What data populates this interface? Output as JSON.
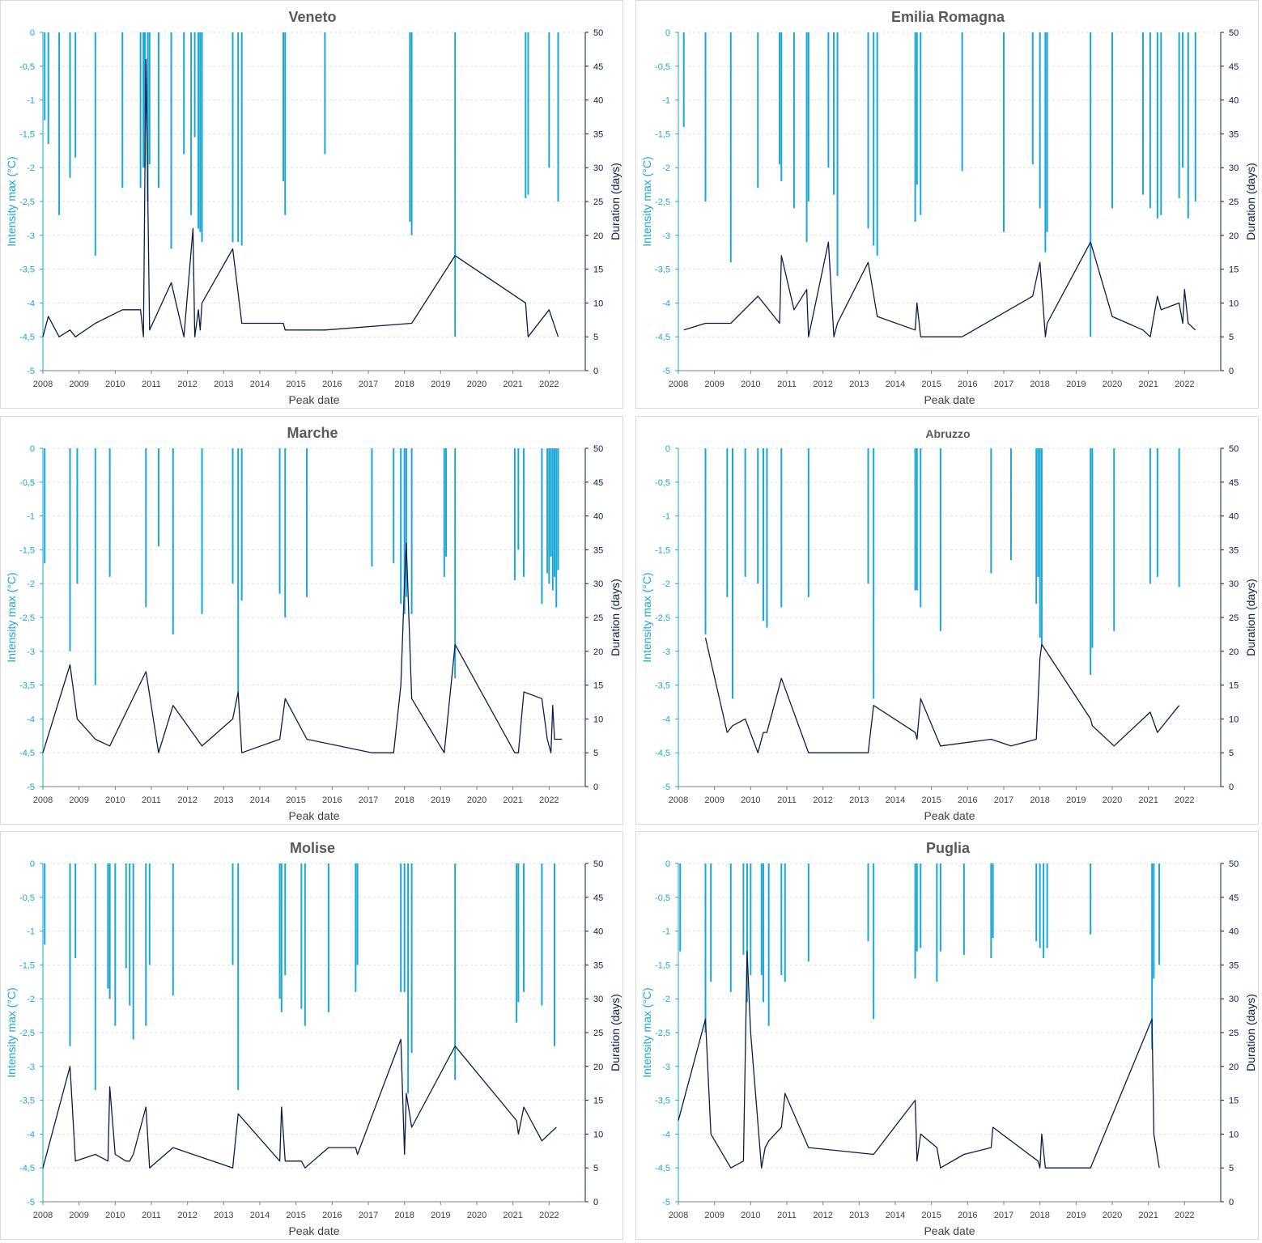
{
  "colors": {
    "intensity": "#1aa7d6",
    "duration": "#0b1d45",
    "text": "#404040",
    "grid": "#d9d9d9"
  },
  "shared": {
    "x_ticks": [
      "2008",
      "2009",
      "2010",
      "2011",
      "2012",
      "2013",
      "2014",
      "2015",
      "2016",
      "2017",
      "2018",
      "2019",
      "2020",
      "2021",
      "2022"
    ],
    "y_left_ticks": [
      "0",
      "-0,5",
      "-1",
      "-1,5",
      "-2",
      "-2,5",
      "-3",
      "-3,5",
      "-4",
      "-4,5",
      "-5"
    ],
    "y_right_ticks": [
      "50",
      "45",
      "40",
      "35",
      "30",
      "25",
      "20",
      "15",
      "10",
      "5",
      "0"
    ]
  },
  "chart_data": [
    {
      "type": "bar+line",
      "title": "Veneto",
      "xlabel": "Peak date",
      "ylabel_left": "Intensity max (°C)",
      "ylabel_right": "Duration (days)",
      "xlim": [
        2008,
        2023
      ],
      "ylim_left": [
        -5,
        0
      ],
      "ylim_right": [
        0,
        50
      ],
      "grid": true,
      "series": [
        {
          "name": "Intensity max",
          "kind": "bar",
          "axis": "left",
          "x": [
            2008.05,
            2008.15,
            2008.45,
            2008.75,
            2008.9,
            2009.45,
            2010.2,
            2010.7,
            2010.78,
            2010.82,
            2010.9,
            2010.95,
            2011.2,
            2011.55,
            2011.9,
            2012.1,
            2012.2,
            2012.3,
            2012.35,
            2012.4,
            2013.25,
            2013.4,
            2013.5,
            2014.65,
            2014.7,
            2015.8,
            2018.15,
            2018.2,
            2019.4,
            2021.35,
            2021.42,
            2022.0,
            2022.25
          ],
          "y": [
            -1.3,
            -1.65,
            -2.7,
            -2.15,
            -1.85,
            -3.3,
            -2.3,
            -2.3,
            -2.0,
            -2.0,
            -2.5,
            -1.95,
            -2.3,
            -3.2,
            -1.8,
            -2.7,
            -1.55,
            -2.9,
            -2.95,
            -3.1,
            -3.1,
            -3.1,
            -3.15,
            -2.2,
            -2.7,
            -1.8,
            -2.8,
            -3.0,
            -4.5,
            -2.45,
            -2.4,
            -2.0,
            -2.5
          ]
        },
        {
          "name": "Duration",
          "kind": "line",
          "axis": "right",
          "x": [
            2008.0,
            2008.15,
            2008.45,
            2008.75,
            2008.9,
            2009.45,
            2010.2,
            2010.7,
            2010.78,
            2010.85,
            2010.95,
            2011.55,
            2011.9,
            2012.15,
            2012.2,
            2012.3,
            2012.35,
            2012.4,
            2013.25,
            2013.5,
            2014.65,
            2014.7,
            2015.8,
            2018.2,
            2019.4,
            2021.35,
            2021.42,
            2022.0,
            2022.25
          ],
          "y": [
            5,
            8,
            5,
            6,
            5,
            7,
            9,
            9,
            5,
            46,
            6,
            13,
            5,
            21,
            5,
            9,
            6,
            10,
            18,
            7,
            7,
            6,
            6,
            7,
            17,
            10,
            5,
            9,
            5
          ]
        }
      ]
    },
    {
      "type": "bar+line",
      "title": "Emilia Romagna",
      "xlabel": "Peak date",
      "ylabel_left": "Intensity max (°C)",
      "ylabel_right": "Duration (days)",
      "xlim": [
        2008,
        2023
      ],
      "ylim_left": [
        -5,
        0
      ],
      "ylim_right": [
        0,
        50
      ],
      "grid": true,
      "series": [
        {
          "name": "Intensity max",
          "kind": "bar",
          "axis": "left",
          "x": [
            2008.15,
            2008.75,
            2009.45,
            2010.2,
            2010.8,
            2010.85,
            2011.2,
            2011.55,
            2011.6,
            2012.15,
            2012.3,
            2012.4,
            2013.25,
            2013.4,
            2013.5,
            2014.55,
            2014.6,
            2014.7,
            2015.85,
            2017.0,
            2017.8,
            2018.0,
            2018.15,
            2018.2,
            2019.4,
            2020.0,
            2020.85,
            2021.05,
            2021.25,
            2021.35,
            2021.85,
            2021.95,
            2022.1,
            2022.3
          ],
          "y": [
            -1.4,
            -2.5,
            -3.4,
            -2.3,
            -1.95,
            -2.2,
            -2.6,
            -3.1,
            -2.5,
            -2.0,
            -2.4,
            -3.6,
            -2.9,
            -3.15,
            -3.3,
            -2.8,
            -2.25,
            -2.7,
            -2.05,
            -2.95,
            -1.95,
            -2.6,
            -3.25,
            -2.95,
            -4.5,
            -2.6,
            -2.4,
            -2.6,
            -2.75,
            -2.7,
            -2.45,
            -2.0,
            -2.75,
            -2.5
          ]
        },
        {
          "name": "Duration",
          "kind": "line",
          "axis": "right",
          "x": [
            2008.15,
            2008.75,
            2009.45,
            2010.2,
            2010.8,
            2010.85,
            2011.2,
            2011.55,
            2011.6,
            2012.15,
            2012.3,
            2012.4,
            2013.25,
            2013.5,
            2014.55,
            2014.6,
            2014.7,
            2015.85,
            2017.8,
            2018.0,
            2018.15,
            2018.2,
            2019.4,
            2020.0,
            2020.85,
            2021.05,
            2021.25,
            2021.35,
            2021.85,
            2021.95,
            2022.0,
            2022.1,
            2022.3
          ],
          "y": [
            6,
            7,
            7,
            11,
            7,
            17,
            9,
            12,
            5,
            19,
            5,
            7,
            16,
            8,
            6,
            10,
            5,
            5,
            11,
            16,
            5,
            7,
            19,
            8,
            6,
            5,
            11,
            9,
            10,
            7,
            12,
            7,
            6
          ]
        }
      ]
    },
    {
      "type": "bar+line",
      "title": "Marche",
      "xlabel": "Peak date",
      "ylabel_left": "Intensity max (°C)",
      "ylabel_right": "Duration (days)",
      "xlim": [
        2008,
        2023
      ],
      "ylim_left": [
        -5,
        0
      ],
      "ylim_right": [
        0,
        50
      ],
      "grid": true,
      "series": [
        {
          "name": "Intensity max",
          "kind": "bar",
          "axis": "left",
          "x": [
            2008.05,
            2008.75,
            2008.95,
            2009.45,
            2009.85,
            2010.85,
            2011.2,
            2011.6,
            2012.4,
            2013.25,
            2013.4,
            2013.5,
            2014.55,
            2014.7,
            2015.3,
            2017.1,
            2017.7,
            2017.9,
            2018.0,
            2018.05,
            2018.2,
            2019.1,
            2019.15,
            2019.4,
            2021.05,
            2021.15,
            2021.3,
            2021.8,
            2021.95,
            2022.0,
            2022.05,
            2022.1,
            2022.15,
            2022.2,
            2022.25
          ],
          "y": [
            -1.7,
            -3.0,
            -2.0,
            -3.5,
            -1.9,
            -2.35,
            -1.45,
            -2.75,
            -2.45,
            -2.0,
            -3.6,
            -2.25,
            -2.15,
            -2.5,
            -2.2,
            -1.75,
            -1.7,
            -2.3,
            -2.45,
            -2.2,
            -2.45,
            -1.9,
            -1.6,
            -3.4,
            -1.95,
            -1.5,
            -1.9,
            -2.3,
            -1.85,
            -2.0,
            -1.6,
            -2.1,
            -1.9,
            -2.35,
            -1.8
          ]
        },
        {
          "name": "Duration",
          "kind": "line",
          "axis": "right",
          "x": [
            2008.0,
            2008.75,
            2008.95,
            2009.45,
            2009.85,
            2010.85,
            2011.2,
            2011.6,
            2012.4,
            2013.25,
            2013.4,
            2013.5,
            2014.55,
            2014.7,
            2015.3,
            2017.1,
            2017.7,
            2017.9,
            2018.0,
            2018.05,
            2018.2,
            2019.1,
            2019.4,
            2021.05,
            2021.15,
            2021.3,
            2021.8,
            2021.95,
            2022.05,
            2022.1,
            2022.15,
            2022.2,
            2022.35
          ],
          "y": [
            5,
            18,
            10,
            7,
            6,
            17,
            5,
            12,
            6,
            10,
            14,
            5,
            7,
            13,
            7,
            5,
            5,
            15,
            30,
            36,
            13,
            5,
            21,
            5,
            5,
            14,
            13,
            7,
            5,
            12,
            7,
            7,
            7
          ]
        }
      ]
    },
    {
      "type": "bar+line",
      "title": "Abruzzo",
      "xlabel": "Peak date",
      "ylabel_left": "Intensity max (°C)",
      "ylabel_right": "Duration (days)",
      "xlim": [
        2008,
        2023
      ],
      "ylim_left": [
        -5,
        0
      ],
      "ylim_right": [
        0,
        50
      ],
      "grid": true,
      "series": [
        {
          "name": "Intensity max",
          "kind": "bar",
          "axis": "left",
          "x": [
            2008.75,
            2009.35,
            2009.5,
            2009.85,
            2010.2,
            2010.35,
            2010.45,
            2010.85,
            2011.6,
            2013.25,
            2013.4,
            2014.55,
            2014.6,
            2014.7,
            2015.25,
            2016.65,
            2017.2,
            2017.9,
            2017.95,
            2018.0,
            2018.05,
            2019.4,
            2019.45,
            2020.05,
            2021.05,
            2021.25,
            2021.85
          ],
          "y": [
            -2.75,
            -2.2,
            -3.7,
            -1.9,
            -2.0,
            -2.55,
            -2.65,
            -2.35,
            -2.2,
            -2.0,
            -3.7,
            -2.1,
            -2.1,
            -2.35,
            -2.7,
            -1.85,
            -1.65,
            -2.3,
            -1.9,
            -2.8,
            -2.9,
            -3.35,
            -2.95,
            -2.7,
            -2.0,
            -1.9,
            -2.05
          ]
        },
        {
          "name": "Duration",
          "kind": "line",
          "axis": "right",
          "x": [
            2008.75,
            2009.35,
            2009.5,
            2009.85,
            2010.2,
            2010.35,
            2010.45,
            2010.85,
            2011.6,
            2013.25,
            2013.4,
            2014.55,
            2014.6,
            2014.7,
            2015.25,
            2016.65,
            2017.2,
            2017.9,
            2018.0,
            2018.05,
            2019.4,
            2019.45,
            2020.05,
            2021.05,
            2021.25,
            2021.85
          ],
          "y": [
            22,
            8,
            9,
            10,
            5,
            8,
            8,
            16,
            5,
            5,
            12,
            8,
            7,
            13,
            6,
            7,
            6,
            7,
            19,
            21,
            10,
            9,
            6,
            11,
            8,
            12
          ]
        }
      ]
    },
    {
      "type": "bar+line",
      "title": "Molise",
      "xlabel": "Peak date",
      "ylabel_left": "Intensity max (°C)",
      "ylabel_right": "Duration (days)",
      "xlim": [
        2008,
        2023
      ],
      "ylim_left": [
        -5,
        0
      ],
      "ylim_right": [
        0,
        50
      ],
      "grid": true,
      "series": [
        {
          "name": "Intensity max",
          "kind": "bar",
          "axis": "left",
          "x": [
            2008.05,
            2008.75,
            2008.9,
            2009.45,
            2009.8,
            2009.85,
            2010.0,
            2010.3,
            2010.4,
            2010.5,
            2010.85,
            2010.95,
            2011.6,
            2013.25,
            2013.4,
            2014.55,
            2014.6,
            2014.7,
            2015.15,
            2015.25,
            2015.9,
            2016.65,
            2016.7,
            2017.9,
            2018.0,
            2018.1,
            2018.2,
            2019.4,
            2021.1,
            2021.15,
            2021.3,
            2021.8,
            2022.15
          ],
          "y": [
            -1.2,
            -2.7,
            -1.4,
            -3.35,
            -1.85,
            -2.0,
            -2.4,
            -1.55,
            -2.1,
            -2.6,
            -2.4,
            -1.5,
            -1.95,
            -1.5,
            -3.35,
            -2.0,
            -2.2,
            -1.65,
            -2.15,
            -2.4,
            -2.2,
            -1.9,
            -1.5,
            -1.9,
            -1.9,
            -3.4,
            -2.8,
            -3.2,
            -2.35,
            -2.05,
            -1.9,
            -2.1,
            -2.7
          ]
        },
        {
          "name": "Duration",
          "kind": "line",
          "axis": "right",
          "x": [
            2008.0,
            2008.75,
            2008.9,
            2009.45,
            2009.8,
            2009.85,
            2010.0,
            2010.3,
            2010.4,
            2010.5,
            2010.85,
            2010.95,
            2011.6,
            2013.25,
            2013.4,
            2014.55,
            2014.6,
            2014.7,
            2015.15,
            2015.25,
            2015.9,
            2016.65,
            2016.7,
            2017.9,
            2018.0,
            2018.05,
            2018.2,
            2019.4,
            2021.1,
            2021.15,
            2021.3,
            2021.8,
            2022.2
          ],
          "y": [
            5,
            20,
            6,
            7,
            6,
            17,
            7,
            6,
            6,
            7,
            14,
            5,
            8,
            5,
            13,
            6,
            14,
            6,
            6,
            5,
            8,
            8,
            7,
            24,
            7,
            16,
            11,
            23,
            12,
            10,
            14,
            9,
            11
          ]
        }
      ]
    },
    {
      "type": "bar+line",
      "title": "Puglia",
      "xlabel": "Peak date",
      "ylabel_left": "Intensity max (°C)",
      "ylabel_right": "Duration (days)",
      "xlim": [
        2008,
        2023
      ],
      "ylim_left": [
        -5,
        0
      ],
      "ylim_right": [
        0,
        50
      ],
      "grid": true,
      "series": [
        {
          "name": "Intensity max",
          "kind": "bar",
          "axis": "left",
          "x": [
            2008.05,
            2008.75,
            2008.9,
            2009.45,
            2009.8,
            2009.9,
            2010.0,
            2010.3,
            2010.35,
            2010.5,
            2010.85,
            2010.95,
            2011.6,
            2013.25,
            2013.4,
            2014.55,
            2014.6,
            2014.7,
            2015.15,
            2015.25,
            2015.9,
            2016.65,
            2016.7,
            2017.9,
            2018.0,
            2018.1,
            2018.2,
            2019.4,
            2021.1,
            2021.15,
            2021.3
          ],
          "y": [
            -1.3,
            -2.5,
            -1.75,
            -1.9,
            -1.35,
            -2.05,
            -1.65,
            -1.65,
            -2.05,
            -2.4,
            -1.65,
            -1.75,
            -1.45,
            -1.15,
            -2.3,
            -1.7,
            -1.3,
            -1.25,
            -1.75,
            -1.3,
            -1.35,
            -1.4,
            -1.1,
            -1.15,
            -1.25,
            -1.4,
            -1.25,
            -1.05,
            -2.75,
            -1.7,
            -1.5
          ]
        },
        {
          "name": "Duration",
          "kind": "line",
          "axis": "right",
          "x": [
            2008.0,
            2008.75,
            2008.9,
            2009.45,
            2009.8,
            2009.9,
            2010.0,
            2010.3,
            2010.4,
            2010.5,
            2010.85,
            2010.95,
            2011.6,
            2013.4,
            2014.55,
            2014.6,
            2014.7,
            2015.15,
            2015.25,
            2015.9,
            2016.65,
            2016.7,
            2017.95,
            2018.0,
            2018.05,
            2018.15,
            2019.4,
            2021.1,
            2021.15,
            2021.3
          ],
          "y": [
            12,
            27,
            10,
            5,
            6,
            37,
            25,
            5,
            8,
            9,
            11,
            16,
            8,
            7,
            15,
            6,
            10,
            8,
            5,
            7,
            8,
            11,
            6,
            5,
            10,
            5,
            5,
            27,
            10,
            5
          ]
        }
      ]
    }
  ]
}
